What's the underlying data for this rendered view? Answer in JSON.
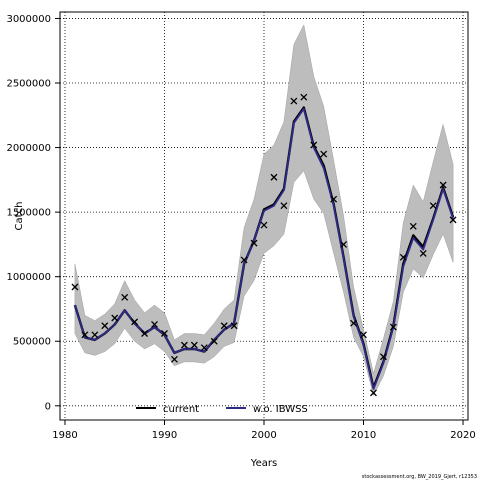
{
  "chart_data": {
    "type": "line",
    "xlabel": "Years",
    "ylabel": "Catch",
    "xlim": [
      1979.5,
      2020.5
    ],
    "ylim": [
      -110000,
      3050000
    ],
    "x_ticks": [
      1980,
      1990,
      2000,
      2010,
      2020
    ],
    "y_ticks": [
      0,
      500000,
      1000000,
      1500000,
      2000000,
      2500000,
      3000000
    ],
    "y_tick_labels": [
      "0",
      "500000",
      "1000000",
      "1500000",
      "2000000",
      "2500000",
      "3000000"
    ],
    "x_tick_labels": [
      "1980",
      "1990",
      "2000",
      "2010",
      "2020"
    ],
    "grid": true,
    "legend_placement": "bottom",
    "x": [
      1981,
      1982,
      1983,
      1984,
      1985,
      1986,
      1987,
      1988,
      1989,
      1990,
      1991,
      1992,
      1993,
      1994,
      1995,
      1996,
      1997,
      1998,
      1999,
      2000,
      2001,
      2002,
      2003,
      2004,
      2005,
      2006,
      2007,
      2008,
      2009,
      2010,
      2011,
      2012,
      2013,
      2014,
      2015,
      2016,
      2017,
      2018,
      2019
    ],
    "observed": [
      920000,
      550000,
      550000,
      620000,
      680000,
      840000,
      650000,
      560000,
      630000,
      560000,
      360000,
      470000,
      470000,
      450000,
      500000,
      620000,
      620000,
      1130000,
      1260000,
      1400000,
      1770000,
      1550000,
      2360000,
      2390000,
      2020000,
      1950000,
      1600000,
      1250000,
      640000,
      550000,
      100000,
      380000,
      610000,
      1150000,
      1390000,
      1180000,
      1550000,
      1710000,
      1440000
    ],
    "band_upper": [
      1100000,
      700000,
      660000,
      710000,
      790000,
      970000,
      820000,
      720000,
      780000,
      720000,
      510000,
      560000,
      560000,
      550000,
      640000,
      750000,
      820000,
      1380000,
      1600000,
      1950000,
      2020000,
      2200000,
      2800000,
      2950000,
      2550000,
      2320000,
      1900000,
      1470000,
      920000,
      590000,
      250000,
      520000,
      810000,
      1420000,
      1710000,
      1580000,
      1890000,
      2180000,
      1870000
    ],
    "band_lower": [
      560000,
      410000,
      390000,
      420000,
      480000,
      600000,
      500000,
      440000,
      480000,
      420000,
      310000,
      340000,
      340000,
      330000,
      380000,
      460000,
      490000,
      850000,
      970000,
      1180000,
      1240000,
      1330000,
      1730000,
      1820000,
      1600000,
      1490000,
      1180000,
      880000,
      530000,
      380000,
      80000,
      230000,
      460000,
      880000,
      1060000,
      990000,
      1170000,
      1330000,
      1110000
    ],
    "series": [
      {
        "name": "current",
        "color": "#000000",
        "values": [
          780000,
          530000,
          510000,
          560000,
          630000,
          740000,
          640000,
          560000,
          610000,
          550000,
          410000,
          440000,
          440000,
          420000,
          510000,
          590000,
          640000,
          1100000,
          1280000,
          1520000,
          1560000,
          1680000,
          2200000,
          2310000,
          2010000,
          1860000,
          1560000,
          1150000,
          700000,
          480000,
          140000,
          340000,
          620000,
          1100000,
          1320000,
          1230000,
          1450000,
          1690000,
          1460000
        ]
      },
      {
        "name": "w.o. IBWSS",
        "color": "#2e2a8a",
        "values": [
          780000,
          530000,
          510000,
          560000,
          630000,
          740000,
          640000,
          560000,
          610000,
          550000,
          410000,
          440000,
          440000,
          420000,
          510000,
          590000,
          640000,
          1100000,
          1280000,
          1510000,
          1550000,
          1670000,
          2190000,
          2300000,
          2000000,
          1840000,
          1550000,
          1140000,
          690000,
          470000,
          130000,
          330000,
          610000,
          1080000,
          1300000,
          1210000,
          1440000,
          1680000,
          1450000
        ]
      }
    ],
    "band_color": "#bdbdbd",
    "footnote": "stockassessment.org, BW_2019_Gjert, r12353"
  }
}
